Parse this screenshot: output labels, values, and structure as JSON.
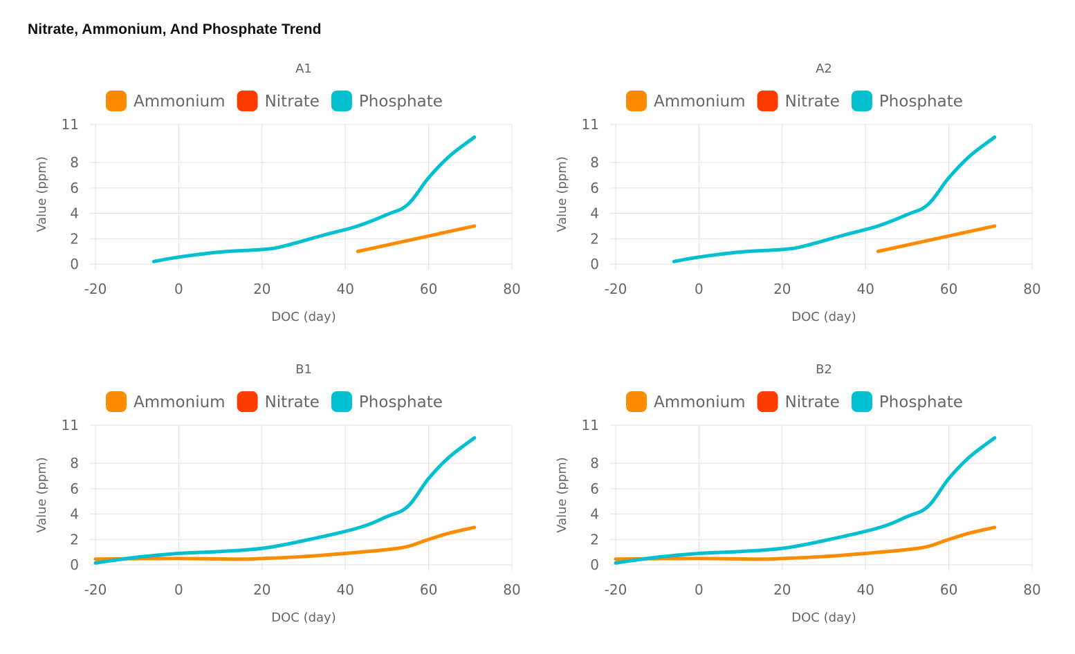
{
  "page": {
    "title": "Nitrate, Ammonium, And Phosphate Trend"
  },
  "colors": {
    "ammonium": "#fb8c00",
    "nitrate": "#ff3d00",
    "phosphate": "#00c0d0"
  },
  "chart_data": [
    {
      "type": "line",
      "title": "A1",
      "xlabel": "DOC (day)",
      "ylabel": "Value (ppm)",
      "xlim": [
        -20,
        80
      ],
      "ylim": [
        0,
        11
      ],
      "xticks": [
        -20,
        0,
        20,
        40,
        60,
        80
      ],
      "yticks": [
        0,
        2,
        4,
        6,
        8,
        11
      ],
      "legend_position": "top",
      "series": [
        {
          "name": "Ammonium",
          "color": "#fb8c00",
          "x": [
            43,
            71
          ],
          "y": [
            1.0,
            3.0
          ]
        },
        {
          "name": "Nitrate",
          "color": "#ff3d00",
          "x": [],
          "y": []
        },
        {
          "name": "Phosphate",
          "color": "#00c0d0",
          "x": [
            -6,
            0,
            10,
            20,
            25,
            35,
            43,
            50,
            55,
            60,
            65,
            71
          ],
          "y": [
            0.2,
            0.55,
            0.95,
            1.15,
            1.4,
            2.3,
            3.0,
            3.9,
            4.7,
            6.8,
            8.5,
            10.0
          ]
        }
      ]
    },
    {
      "type": "line",
      "title": "A2",
      "xlabel": "DOC (day)",
      "ylabel": "Value (ppm)",
      "xlim": [
        -20,
        80
      ],
      "ylim": [
        0,
        11
      ],
      "xticks": [
        -20,
        0,
        20,
        40,
        60,
        80
      ],
      "yticks": [
        0,
        2,
        4,
        6,
        8,
        11
      ],
      "legend_position": "top",
      "series": [
        {
          "name": "Ammonium",
          "color": "#fb8c00",
          "x": [
            43,
            71
          ],
          "y": [
            1.0,
            3.0
          ]
        },
        {
          "name": "Nitrate",
          "color": "#ff3d00",
          "x": [],
          "y": []
        },
        {
          "name": "Phosphate",
          "color": "#00c0d0",
          "x": [
            -6,
            0,
            10,
            20,
            25,
            35,
            43,
            50,
            55,
            60,
            65,
            71
          ],
          "y": [
            0.2,
            0.55,
            0.95,
            1.15,
            1.4,
            2.3,
            3.0,
            3.9,
            4.7,
            6.8,
            8.5,
            10.0
          ]
        }
      ]
    },
    {
      "type": "line",
      "title": "B1",
      "xlabel": "DOC (day)",
      "ylabel": "Value (ppm)",
      "xlim": [
        -20,
        80
      ],
      "ylim": [
        0,
        11
      ],
      "xticks": [
        -20,
        0,
        20,
        40,
        60,
        80
      ],
      "yticks": [
        0,
        2,
        4,
        6,
        8,
        11
      ],
      "legend_position": "top",
      "series": [
        {
          "name": "Ammonium",
          "color": "#fb8c00",
          "x": [
            -20,
            0,
            15,
            20,
            30,
            40,
            50,
            55,
            60,
            65,
            71
          ],
          "y": [
            0.45,
            0.5,
            0.45,
            0.5,
            0.65,
            0.9,
            1.2,
            1.45,
            2.0,
            2.5,
            2.95
          ]
        },
        {
          "name": "Nitrate",
          "color": "#ff3d00",
          "x": [],
          "y": []
        },
        {
          "name": "Phosphate",
          "color": "#00c0d0",
          "x": [
            -20,
            -10,
            0,
            10,
            20,
            30,
            43,
            50,
            55,
            60,
            65,
            71
          ],
          "y": [
            0.15,
            0.6,
            0.9,
            1.05,
            1.3,
            1.9,
            2.9,
            3.8,
            4.6,
            6.8,
            8.5,
            10.0
          ]
        }
      ]
    },
    {
      "type": "line",
      "title": "B2",
      "xlabel": "DOC (day)",
      "ylabel": "Value (ppm)",
      "xlim": [
        -20,
        80
      ],
      "ylim": [
        0,
        11
      ],
      "xticks": [
        -20,
        0,
        20,
        40,
        60,
        80
      ],
      "yticks": [
        0,
        2,
        4,
        6,
        8,
        11
      ],
      "legend_position": "top",
      "series": [
        {
          "name": "Ammonium",
          "color": "#fb8c00",
          "x": [
            -20,
            0,
            15,
            20,
            30,
            40,
            50,
            55,
            60,
            65,
            71
          ],
          "y": [
            0.45,
            0.5,
            0.45,
            0.5,
            0.65,
            0.9,
            1.2,
            1.45,
            2.0,
            2.5,
            2.95
          ]
        },
        {
          "name": "Nitrate",
          "color": "#ff3d00",
          "x": [],
          "y": []
        },
        {
          "name": "Phosphate",
          "color": "#00c0d0",
          "x": [
            -20,
            -10,
            0,
            10,
            20,
            30,
            43,
            50,
            55,
            60,
            65,
            71
          ],
          "y": [
            0.15,
            0.6,
            0.9,
            1.05,
            1.3,
            1.9,
            2.9,
            3.8,
            4.6,
            6.8,
            8.5,
            10.0
          ]
        }
      ]
    }
  ]
}
